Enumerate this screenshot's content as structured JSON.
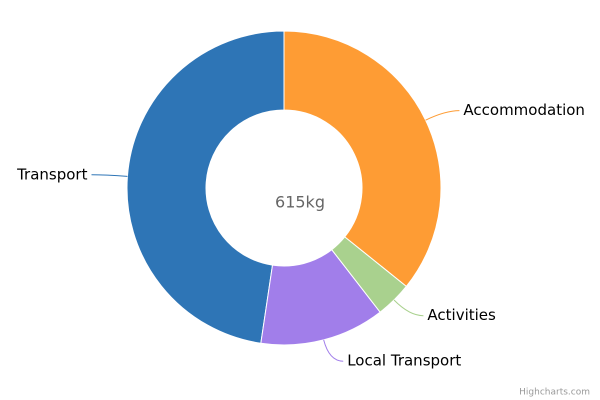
{
  "chart_data": {
    "type": "donut",
    "center_label": "615kg",
    "credit": "Highcharts.com",
    "categories": [
      "Accommodation",
      "Activities",
      "Local Transport",
      "Transport"
    ],
    "values": [
      220,
      23,
      79,
      293
    ],
    "colors": [
      "#fe9c34",
      "#a9d18e",
      "#a17eea",
      "#2e75b6"
    ]
  }
}
